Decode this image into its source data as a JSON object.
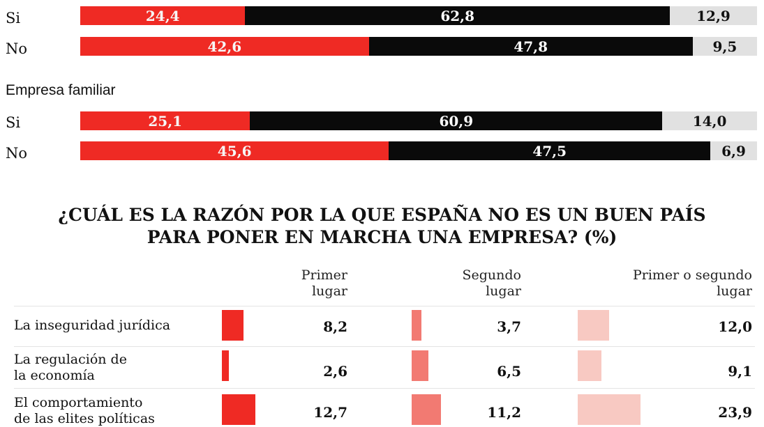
{
  "chart_data": [
    {
      "type": "bar",
      "stacked": true,
      "orientation": "horizontal",
      "categories": [
        "Si",
        "No"
      ],
      "series": [
        {
          "values": [
            24.4,
            42.6
          ]
        },
        {
          "values": [
            62.8,
            47.8
          ]
        },
        {
          "values": [
            12.9,
            9.5
          ]
        }
      ]
    },
    {
      "type": "bar",
      "stacked": true,
      "orientation": "horizontal",
      "title": "Empresa familiar",
      "categories": [
        "Si",
        "No"
      ],
      "series": [
        {
          "values": [
            25.1,
            45.6
          ]
        },
        {
          "values": [
            60.9,
            47.5
          ]
        },
        {
          "values": [
            14.0,
            6.9
          ]
        }
      ]
    },
    {
      "type": "bar",
      "orientation": "horizontal",
      "title_lines": [
        "¿CUÁL ES LA RAZÓN POR LA QUE ESPAÑA NO ES UN BUEN PAÍS",
        "PARA PONER EN MARCHA UNA EMPRESA? (%)"
      ],
      "columns": [
        {
          "lines": [
            "Primer",
            "lugar"
          ]
        },
        {
          "lines": [
            "Segundo",
            "lugar"
          ]
        },
        {
          "lines": [
            "Primer o segundo",
            "lugar"
          ]
        }
      ],
      "rows": [
        {
          "lines": [
            "La inseguridad jurídica"
          ],
          "values": [
            8.2,
            3.7,
            12.0
          ],
          "labels": [
            "8,2",
            "3,7",
            "12,0"
          ]
        },
        {
          "lines": [
            "La regulación de",
            "la economía"
          ],
          "values": [
            2.6,
            6.5,
            9.1
          ],
          "labels": [
            "2,6",
            "6,5",
            "9,1"
          ]
        },
        {
          "lines": [
            "El comportamiento",
            "de las elites políticas"
          ],
          "values": [
            12.7,
            11.2,
            23.9
          ],
          "labels": [
            "12,7",
            "11,2",
            "23,9"
          ]
        }
      ]
    }
  ],
  "display": {
    "group1": [
      {
        "label": "Si",
        "segs": [
          "24,4",
          "62,8",
          "12,9"
        ]
      },
      {
        "label": "No",
        "segs": [
          "42,6",
          "47,8",
          "9,5"
        ]
      }
    ],
    "group2": [
      {
        "label": "Si",
        "segs": [
          "25,1",
          "60,9",
          "14,0"
        ]
      },
      {
        "label": "No",
        "segs": [
          "45,6",
          "47,5",
          "6,9"
        ]
      }
    ]
  },
  "colors": {
    "seg1": "#ef2a24",
    "seg2": "#0a0a0a",
    "seg3": "#e1e1e1",
    "col1_bar": "#ef2a24",
    "col2_bar": "#f27a72",
    "col3_bar": "#f8c9c2"
  }
}
